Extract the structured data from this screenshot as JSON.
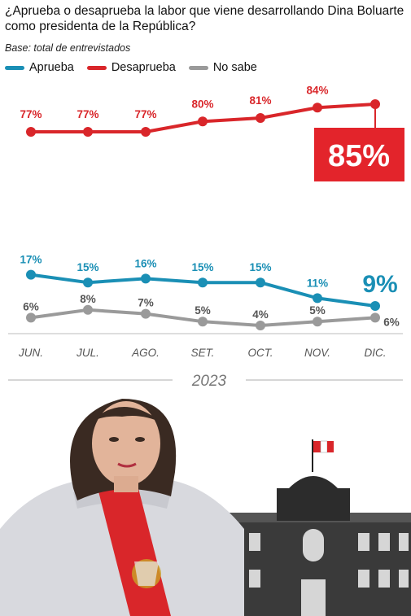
{
  "title": "¿Aprueba o desaprueba la labor que viene desarrollando Dina Boluarte como presidenta de la República?",
  "base": "Base: total de entrevistados",
  "chart_data": {
    "type": "line",
    "categories": [
      "JUN.",
      "JUL.",
      "AGO.",
      "SET.",
      "OCT.",
      "NOV.",
      "DIC."
    ],
    "year_label": "2023",
    "series": [
      {
        "name": "Aprueba",
        "color": "#1a8fb5",
        "values": [
          17,
          15,
          16,
          15,
          15,
          11,
          9
        ],
        "labels": [
          "17%",
          "15%",
          "16%",
          "15%",
          "15%",
          "11%",
          "9%"
        ]
      },
      {
        "name": "Desaprueba",
        "color": "#d9262a",
        "values": [
          77,
          77,
          77,
          80,
          81,
          84,
          85
        ],
        "labels": [
          "77%",
          "77%",
          "77%",
          "80%",
          "81%",
          "84%",
          "85%"
        ]
      },
      {
        "name": "No sabe",
        "color": "#9a9a9a",
        "values": [
          6,
          8,
          7,
          5,
          4,
          5,
          6
        ],
        "labels": [
          "6%",
          "8%",
          "7%",
          "5%",
          "4%",
          "5%",
          "6%"
        ]
      }
    ],
    "axis_broken": true,
    "grid": false,
    "legend_position": "top-left"
  }
}
